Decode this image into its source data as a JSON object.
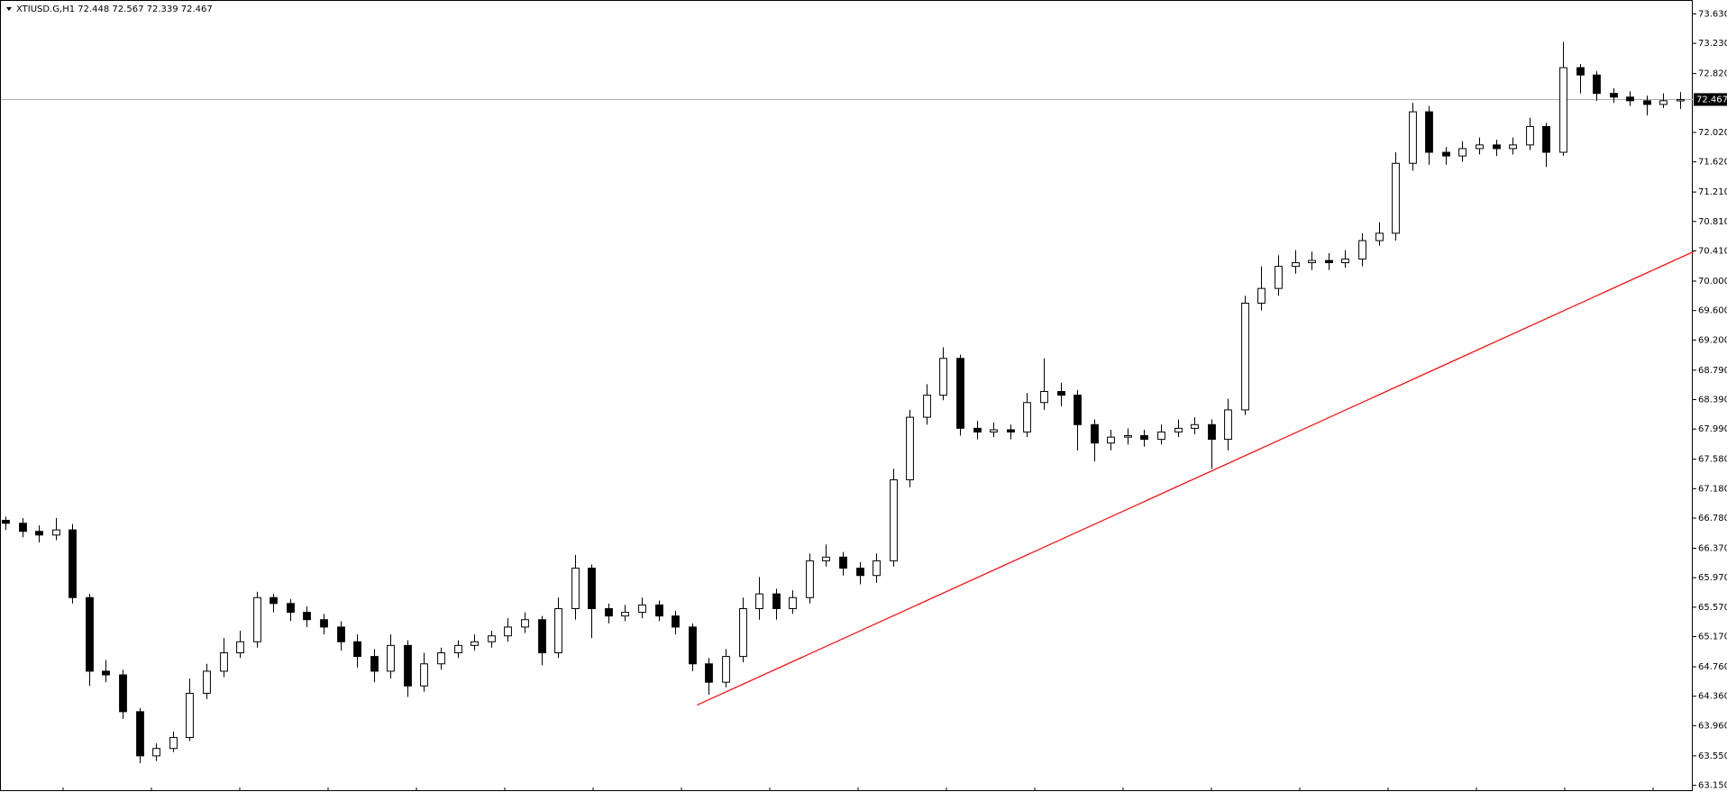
{
  "chart_data": {
    "type": "candlestick",
    "title": "XTIUSD.G,H1  72.448 72.567 72.339 72.467",
    "open": [
      66.75,
      66.71,
      66.6,
      66.55,
      66.62,
      65.7,
      64.7,
      64.65,
      64.15,
      63.55,
      63.65,
      63.8,
      64.4,
      64.7,
      64.95,
      65.1,
      65.7,
      65.62,
      65.5,
      65.4,
      65.3,
      65.1,
      64.9,
      64.7,
      65.05,
      64.5,
      64.8,
      64.95,
      65.05,
      65.1,
      65.18,
      65.3,
      65.4,
      64.95,
      65.55,
      66.1,
      65.55,
      65.45,
      65.5,
      65.6,
      65.45,
      65.3,
      64.8,
      64.55,
      64.9,
      65.55,
      65.75,
      65.55,
      65.7,
      66.2,
      66.25,
      66.1,
      66.0,
      66.2,
      67.3,
      68.15,
      68.45,
      68.95,
      68.0,
      67.95,
      67.98,
      67.95,
      68.35,
      68.5,
      68.45,
      68.05,
      67.8,
      67.88,
      67.9,
      67.85,
      67.95,
      68.0,
      68.05,
      67.85,
      68.25,
      69.7,
      69.9,
      70.2,
      70.25,
      70.28,
      70.25,
      70.3,
      70.55,
      70.65,
      71.6,
      72.3,
      71.75,
      71.7,
      71.8,
      71.85,
      71.8,
      71.85,
      72.1,
      71.75,
      72.9,
      72.8,
      72.55,
      72.5,
      72.45,
      72.4,
      72.448
    ],
    "high": [
      66.8,
      66.78,
      66.68,
      66.78,
      66.7,
      65.75,
      64.85,
      64.72,
      64.2,
      63.72,
      63.88,
      64.6,
      64.8,
      65.15,
      65.25,
      65.78,
      65.75,
      65.68,
      65.58,
      65.48,
      65.38,
      65.2,
      65.0,
      65.2,
      65.12,
      64.95,
      65.02,
      65.12,
      65.2,
      65.25,
      65.42,
      65.5,
      65.45,
      65.7,
      66.28,
      66.15,
      65.62,
      65.6,
      65.7,
      65.66,
      65.52,
      65.35,
      64.88,
      65.0,
      65.7,
      65.98,
      65.82,
      65.8,
      66.3,
      66.42,
      66.32,
      66.18,
      66.3,
      67.45,
      68.25,
      68.6,
      69.1,
      69.0,
      68.1,
      68.08,
      68.05,
      68.48,
      68.95,
      68.62,
      68.52,
      68.12,
      67.98,
      68.0,
      67.98,
      68.05,
      68.12,
      68.15,
      68.12,
      68.4,
      69.8,
      70.2,
      70.35,
      70.42,
      70.4,
      70.38,
      70.42,
      70.65,
      70.8,
      71.75,
      72.42,
      72.38,
      71.82,
      71.9,
      71.95,
      71.92,
      71.95,
      72.22,
      72.15,
      73.25,
      72.95,
      72.85,
      72.62,
      72.58,
      72.52,
      72.55,
      72.567
    ],
    "low": [
      66.62,
      66.52,
      66.45,
      66.48,
      65.62,
      64.5,
      64.55,
      64.05,
      63.45,
      63.48,
      63.6,
      63.75,
      64.32,
      64.62,
      64.88,
      65.02,
      65.5,
      65.38,
      65.3,
      65.2,
      64.98,
      64.75,
      64.55,
      64.6,
      64.35,
      64.42,
      64.72,
      64.88,
      64.98,
      65.02,
      65.1,
      65.22,
      64.78,
      64.88,
      65.4,
      65.15,
      65.35,
      65.38,
      65.42,
      65.38,
      65.2,
      64.7,
      64.38,
      64.48,
      64.82,
      65.4,
      65.4,
      65.48,
      65.62,
      66.12,
      66.0,
      65.88,
      65.9,
      66.12,
      67.2,
      68.05,
      68.38,
      67.9,
      67.85,
      67.88,
      67.85,
      67.88,
      68.25,
      68.3,
      67.7,
      67.55,
      67.7,
      67.78,
      67.75,
      67.78,
      67.88,
      67.92,
      67.45,
      67.7,
      68.18,
      69.6,
      69.8,
      70.1,
      70.15,
      70.15,
      70.18,
      70.2,
      70.48,
      70.55,
      71.5,
      71.58,
      71.58,
      71.62,
      71.72,
      71.7,
      71.72,
      71.78,
      71.55,
      71.7,
      72.55,
      72.45,
      72.42,
      72.38,
      72.25,
      72.35,
      72.339
    ],
    "close": [
      66.71,
      66.6,
      66.55,
      66.62,
      65.7,
      64.7,
      64.65,
      64.15,
      63.55,
      63.65,
      63.8,
      64.4,
      64.7,
      64.95,
      65.1,
      65.7,
      65.62,
      65.5,
      65.4,
      65.3,
      65.1,
      64.9,
      64.7,
      65.05,
      64.5,
      64.8,
      64.95,
      65.05,
      65.1,
      65.18,
      65.3,
      65.4,
      64.95,
      65.55,
      66.1,
      65.55,
      65.45,
      65.5,
      65.6,
      65.45,
      65.3,
      64.8,
      64.55,
      64.9,
      65.55,
      65.75,
      65.55,
      65.7,
      66.2,
      66.25,
      66.1,
      66.0,
      66.2,
      67.3,
      68.15,
      68.45,
      68.95,
      68.0,
      67.95,
      67.98,
      67.95,
      68.35,
      68.5,
      68.45,
      68.05,
      67.8,
      67.88,
      67.9,
      67.85,
      67.95,
      68.0,
      68.05,
      67.85,
      68.25,
      69.7,
      69.9,
      70.2,
      70.25,
      70.28,
      70.25,
      70.3,
      70.55,
      70.65,
      71.6,
      72.3,
      71.75,
      71.7,
      71.8,
      71.85,
      71.8,
      71.85,
      72.1,
      71.75,
      72.9,
      72.8,
      72.55,
      72.5,
      72.45,
      72.4,
      72.45,
      72.467
    ],
    "up_color": "#ffffff",
    "down_color": "#000000",
    "ylim": [
      63.12,
      73.77
    ],
    "yticks": [
      {
        "value": 73.63,
        "label": "73.630"
      },
      {
        "value": 73.23,
        "label": "73.230"
      },
      {
        "value": 72.82,
        "label": "72.820"
      },
      {
        "value": 72.02,
        "label": "72.020"
      },
      {
        "value": 71.62,
        "label": "71.620"
      },
      {
        "value": 71.21,
        "label": "71.210"
      },
      {
        "value": 70.81,
        "label": "70.810"
      },
      {
        "value": 70.41,
        "label": "70.410"
      },
      {
        "value": 70.0,
        "label": "70.000"
      },
      {
        "value": 69.6,
        "label": "69.600"
      },
      {
        "value": 69.2,
        "label": "69.200"
      },
      {
        "value": 68.79,
        "label": "68.790"
      },
      {
        "value": 68.39,
        "label": "68.390"
      },
      {
        "value": 67.99,
        "label": "67.990"
      },
      {
        "value": 67.58,
        "label": "67.580"
      },
      {
        "value": 67.18,
        "label": "67.180"
      },
      {
        "value": 66.78,
        "label": "66.780"
      },
      {
        "value": 66.37,
        "label": "66.370"
      },
      {
        "value": 65.97,
        "label": "65.970"
      },
      {
        "value": 65.57,
        "label": "65.570"
      },
      {
        "value": 65.17,
        "label": "65.170"
      },
      {
        "value": 64.76,
        "label": "64.760"
      },
      {
        "value": 64.36,
        "label": "64.360"
      },
      {
        "value": 63.96,
        "label": "63.960"
      },
      {
        "value": 63.55,
        "label": "63.550"
      },
      {
        "value": 63.15,
        "label": "63.150"
      }
    ],
    "price_line": {
      "value": 72.467,
      "label": "72.467",
      "color": "#b0b0b0"
    },
    "trendline": {
      "x": [
        41.3,
        100.8
      ],
      "y": [
        64.24,
        70.4
      ],
      "color": "#ff0000"
    }
  }
}
